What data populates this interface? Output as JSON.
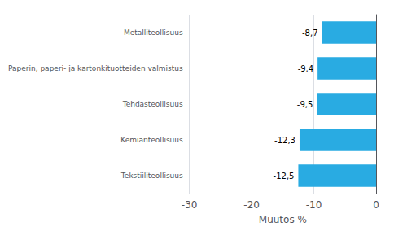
{
  "chart_data": {
    "type": "bar",
    "orientation": "horizontal",
    "categories": [
      "Tekstiiliteollisuus",
      "Kemianteollisuus",
      "Tehdasteollisuus",
      "Paperin, paperi- ja kartonkituotteiden valmistus",
      "Metalliteollisuus"
    ],
    "values": [
      -12.5,
      -12.3,
      -9.5,
      -9.4,
      -8.7
    ],
    "value_labels": [
      "-12,5",
      "-12,3",
      "-9,5",
      "-9,4",
      "-8,7"
    ],
    "data_labels": true,
    "color": "#29ABE2",
    "xlabel": "Muutos %",
    "xlim": [
      -30,
      0
    ],
    "xticks": [
      -30,
      -20,
      -10,
      0
    ],
    "grid": true
  }
}
